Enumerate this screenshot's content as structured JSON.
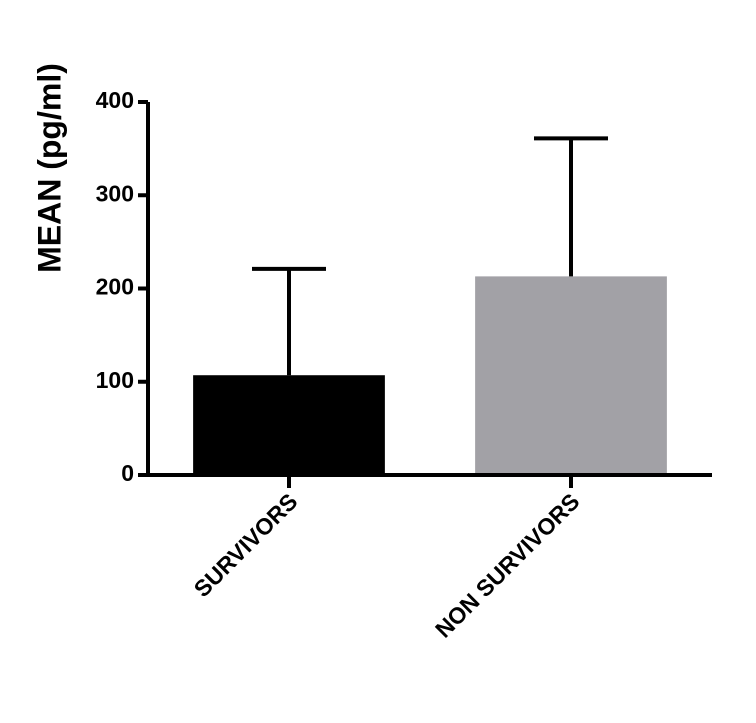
{
  "chart_data": {
    "type": "bar",
    "y_label": "MEAN (pg/ml)",
    "categories": [
      "SURVIVORS",
      "NON SURVIVORS"
    ],
    "values": [
      107,
      213
    ],
    "errors": [
      114,
      148
    ],
    "colors": [
      "#000000",
      "#a2a1a6"
    ],
    "ylim": [
      0,
      400
    ],
    "yticks": [
      0,
      100,
      200,
      300,
      400
    ],
    "grid": false
  }
}
